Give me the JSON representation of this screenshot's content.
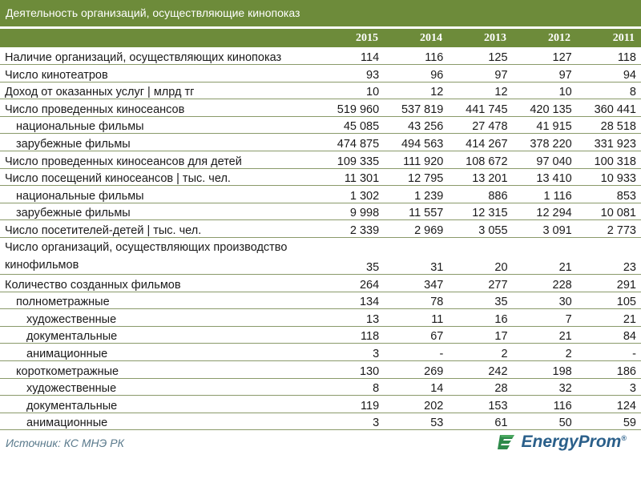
{
  "title": "Деятельность организаций, осуществляющие кинопоказ",
  "years": [
    "2015",
    "2014",
    "2013",
    "2012",
    "2011"
  ],
  "rows": [
    {
      "label": "Наличие организаций, осуществляющих кинопоказ",
      "indent": 0,
      "values": [
        "114",
        "116",
        "125",
        "127",
        "118"
      ]
    },
    {
      "label": "Число кинотеатров",
      "indent": 0,
      "values": [
        "93",
        "96",
        "97",
        "97",
        "94"
      ]
    },
    {
      "label": "Доход от оказанных услуг | млрд тг",
      "indent": 0,
      "values": [
        "10",
        "12",
        "12",
        "10",
        "8"
      ]
    },
    {
      "label": "Число проведенных киносеансов",
      "indent": 0,
      "values": [
        "519 960",
        "537 819",
        "441 745",
        "420 135",
        "360 441"
      ]
    },
    {
      "label": "национальные фильмы",
      "indent": 1,
      "values": [
        "45 085",
        "43 256",
        "27 478",
        "41 915",
        "28 518"
      ]
    },
    {
      "label": "зарубежные фильмы",
      "indent": 1,
      "values": [
        "474 875",
        "494 563",
        "414 267",
        "378 220",
        "331 923"
      ]
    },
    {
      "label": "Число проведенных киносеансов для детей",
      "indent": 0,
      "values": [
        "109 335",
        "111 920",
        "108 672",
        "97 040",
        "100 318"
      ]
    },
    {
      "label": "Число посещений киносеансов | тыс. чел.",
      "indent": 0,
      "values": [
        "11 301",
        "12 795",
        "13 201",
        "13 410",
        "10 933"
      ]
    },
    {
      "label": "национальные фильмы",
      "indent": 1,
      "values": [
        "1 302",
        "1 239",
        "886",
        "1 116",
        "853"
      ]
    },
    {
      "label": "зарубежные фильмы",
      "indent": 1,
      "values": [
        "9 998",
        "11 557",
        "12 315",
        "12 294",
        "10 081"
      ]
    },
    {
      "label": "Число посетителей-детей | тыс. чел.",
      "indent": 0,
      "values": [
        "2 339",
        "2 969",
        "3 055",
        "3 091",
        "2 773"
      ]
    },
    {
      "label": "Число организаций, осуществляющих производство кинофильмов",
      "indent": 0,
      "tall": true,
      "values": [
        "35",
        "31",
        "20",
        "21",
        "23"
      ]
    },
    {
      "label": "Количество созданных фильмов",
      "indent": 0,
      "values": [
        "264",
        "347",
        "277",
        "228",
        "291"
      ]
    },
    {
      "label": "полнометражные",
      "indent": 1,
      "values": [
        "134",
        "78",
        "35",
        "30",
        "105"
      ]
    },
    {
      "label": "художественные",
      "indent": 2,
      "values": [
        "13",
        "11",
        "16",
        "7",
        "21"
      ]
    },
    {
      "label": "документальные",
      "indent": 2,
      "values": [
        "118",
        "67",
        "17",
        "21",
        "84"
      ]
    },
    {
      "label": "анимационные",
      "indent": 2,
      "values": [
        "3",
        "-",
        "2",
        "2",
        "-"
      ]
    },
    {
      "label": "короткометражные",
      "indent": 1,
      "values": [
        "130",
        "269",
        "242",
        "198",
        "186"
      ]
    },
    {
      "label": "художественные",
      "indent": 2,
      "values": [
        "8",
        "14",
        "28",
        "32",
        "3"
      ]
    },
    {
      "label": "документальные",
      "indent": 2,
      "values": [
        "119",
        "202",
        "153",
        "116",
        "124"
      ]
    },
    {
      "label": "анимационные",
      "indent": 2,
      "values": [
        "3",
        "53",
        "61",
        "50",
        "59"
      ]
    }
  ],
  "source": "Источник: КС МНЭ РК",
  "logo": {
    "text": "EnergyProm",
    "tm": "®"
  },
  "colors": {
    "header_bg": "#6d8b3a",
    "source_text": "#5a7a8c",
    "logo_blue": "#2a5f8a"
  }
}
